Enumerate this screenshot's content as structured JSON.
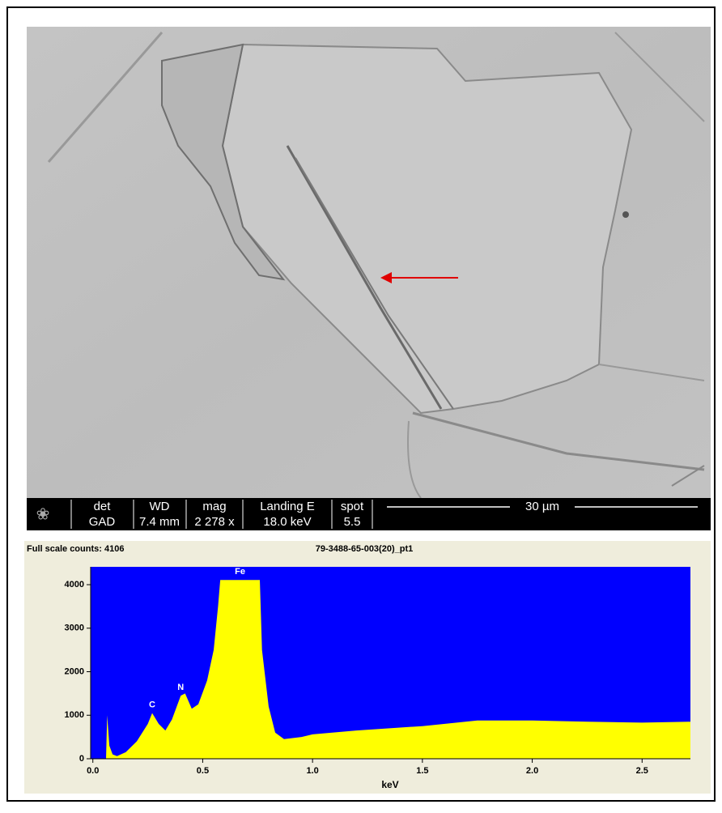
{
  "sem_bar": {
    "columns": [
      {
        "header": "det",
        "value": "GAD"
      },
      {
        "header": "WD",
        "value": "7.4 mm"
      },
      {
        "header": "mag",
        "value": "2 278 x"
      },
      {
        "header": "Landing E",
        "value": "18.0 keV"
      },
      {
        "header": "spot",
        "value": "5.5"
      }
    ],
    "scale": "30 µm"
  },
  "chart_data": {
    "type": "area",
    "title": "Full scale counts: 4106",
    "subtitle": "79-3488-65-003(20)_pt1",
    "x_label": "keV",
    "color": "#ffff00",
    "background": "#0000ff",
    "x": [
      0.06,
      0.065,
      0.075,
      0.09,
      0.11,
      0.15,
      0.2,
      0.25,
      0.27,
      0.3,
      0.33,
      0.36,
      0.4,
      0.42,
      0.45,
      0.48,
      0.52,
      0.55,
      0.57,
      0.58,
      0.76,
      0.77,
      0.8,
      0.83,
      0.87,
      0.95,
      1.0,
      1.2,
      1.5,
      1.75,
      2.0,
      2.25,
      2.5,
      2.72
    ],
    "values": [
      0,
      1000,
      300,
      100,
      60,
      150,
      400,
      800,
      1050,
      800,
      650,
      900,
      1450,
      1500,
      1150,
      1250,
      1800,
      2500,
      3500,
      4106,
      4106,
      2500,
      1200,
      600,
      450,
      500,
      560,
      650,
      750,
      880,
      880,
      850,
      830,
      850
    ],
    "annotations": [
      {
        "label": "C",
        "x": 0.27
      },
      {
        "label": "N",
        "x": 0.4
      },
      {
        "label": "Fe",
        "x": 0.67
      }
    ],
    "xlim": [
      -0.01,
      2.72
    ],
    "ylim": [
      0,
      4410
    ],
    "xticks": [
      {
        "value": 0,
        "label": "0.0"
      },
      0.5,
      {
        "value": 1,
        "label": "1.0"
      },
      1.5,
      {
        "value": 2,
        "label": "2.0"
      },
      2.5
    ],
    "yticks": [
      0,
      1000,
      2000,
      3000,
      4000
    ]
  }
}
